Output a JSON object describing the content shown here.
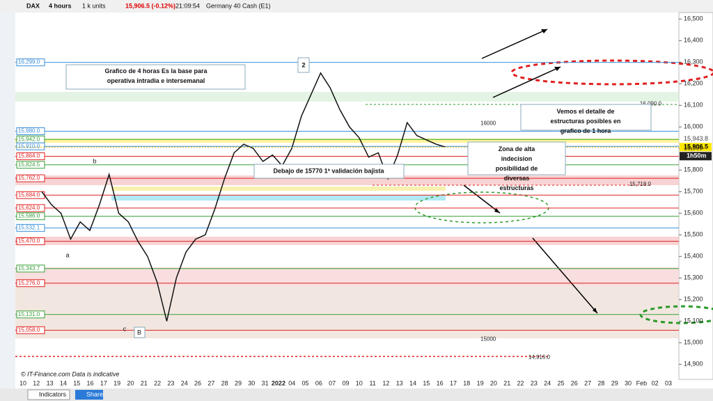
{
  "toolbar": {
    "symbol": "DAX",
    "timeframe": "4 hours",
    "size": "1 k units",
    "quote": "15,906.5 (-0.12%)",
    "time": "21:09:54",
    "instrument": "Germany 40 Cash (E1)"
  },
  "chart": {
    "price_axis": {
      "ylim": [
        14830,
        16530
      ],
      "ticks": [
        {
          "value": 16500,
          "label": "16,500"
        },
        {
          "value": 16400,
          "label": "16,400"
        },
        {
          "value": 16300,
          "label": "16,300"
        },
        {
          "value": 16200,
          "label": "16,200"
        },
        {
          "value": 16100,
          "label": "16,100"
        },
        {
          "value": 16000,
          "label": "16,000"
        },
        {
          "value": 15900,
          "label": "15,900"
        },
        {
          "value": 15800,
          "label": "15,800"
        },
        {
          "value": 15700,
          "label": "15,700"
        },
        {
          "value": 15600,
          "label": "15,600"
        },
        {
          "value": 15500,
          "label": "15,500"
        },
        {
          "value": 15400,
          "label": "15,400"
        },
        {
          "value": 15300,
          "label": "15,300"
        },
        {
          "value": 15200,
          "label": "15,200"
        },
        {
          "value": 15100,
          "label": "15,100"
        },
        {
          "value": 15000,
          "label": "15,000"
        },
        {
          "value": 14900,
          "label": "14,900"
        }
      ]
    },
    "last_price": {
      "value": 15906.5,
      "label": "15,906.5"
    },
    "prev_label": {
      "value": 15943.8,
      "label": "15,943.8"
    },
    "countdown": "1h50m",
    "levels": [
      {
        "value": 16299,
        "label": "16,299.0",
        "color": "#3a8fd8"
      },
      {
        "value": 15980,
        "label": "15,980.0",
        "color": "#3a8fd8"
      },
      {
        "value": 15942,
        "label": "15,942.0",
        "color": "#3aa03a"
      },
      {
        "value": 15910,
        "label": "15,910.0",
        "color": "#3a8fd8"
      },
      {
        "value": 15864,
        "label": "15,864.0",
        "color": "#e02020"
      },
      {
        "value": 15824.5,
        "label": "15,824.5",
        "color": "#3aa03a"
      },
      {
        "value": 15762,
        "label": "15,762.0",
        "color": "#e02020"
      },
      {
        "value": 15684,
        "label": "15,684.0",
        "color": "#e02020"
      },
      {
        "value": 15624,
        "label": "15,624.0",
        "color": "#e02020"
      },
      {
        "value": 15586,
        "label": "15,586.0",
        "color": "#3aa03a"
      },
      {
        "value": 15532.1,
        "label": "15,532.1",
        "color": "#3a8fd8"
      },
      {
        "value": 15470,
        "label": "15,470.0",
        "color": "#e02020"
      },
      {
        "value": 15343.7,
        "label": "15,343.7",
        "color": "#3aa03a"
      },
      {
        "value": 15276,
        "label": "15,276.0",
        "color": "#e02020"
      },
      {
        "value": 15131,
        "label": "15,131.0",
        "color": "#3aa03a"
      },
      {
        "value": 15058,
        "label": "15,058.0",
        "color": "#e02020"
      }
    ],
    "inline_labels": [
      {
        "value": 16090,
        "label": "16,090.0"
      },
      {
        "value": 16000,
        "label": "16000"
      },
      {
        "value": 15718,
        "label": "15,718.0"
      },
      {
        "value": 15000,
        "label": "15000"
      },
      {
        "value": 14916,
        "label": "14,916.0"
      }
    ],
    "closes": [
      15700,
      15640,
      15600,
      15480,
      15560,
      15520,
      15640,
      15780,
      15600,
      15560,
      15470,
      15400,
      15280,
      15100,
      15300,
      15420,
      15480,
      15500,
      15620,
      15760,
      15880,
      15920,
      15900,
      15840,
      15870,
      15820,
      15900,
      16050,
      16150,
      16250,
      16180,
      16080,
      16000,
      15950,
      15860,
      15880,
      15760,
      15870,
      16020,
      15960,
      15940,
      15920,
      15906.5
    ],
    "annotations": {
      "main": "Grafico de 4 horas Es la base para operativa intradia e intersemanal",
      "detail": "Vemos el detalle de estructuras posibles en grafico de 1 hora",
      "zone": "Zona de alta indecision posibilidad de diversas estructuras",
      "validation": "Debajo de 15770 1ª validación bajista",
      "wave2": "2",
      "a": "a",
      "b": "b",
      "c": "c",
      "B": "B"
    },
    "dates": [
      "10",
      "12",
      "13",
      "14",
      "15",
      "16",
      "17",
      "19",
      "20",
      "21",
      "22",
      "23",
      "24",
      "26",
      "27",
      "28",
      "29",
      "30",
      "31",
      "2022",
      "04",
      "05",
      "06",
      "07",
      "09",
      "10",
      "11",
      "12",
      "13",
      "14",
      "15",
      "16",
      "17",
      "18",
      "19",
      "20",
      "21",
      "22",
      "23",
      "24",
      "25",
      "26",
      "27",
      "28",
      "29",
      "30",
      "Feb",
      "02",
      "03"
    ]
  },
  "footer": {
    "indicators": "Indicators",
    "share": "Share",
    "credit": "© IT-Finance.com  Data is indicative"
  }
}
